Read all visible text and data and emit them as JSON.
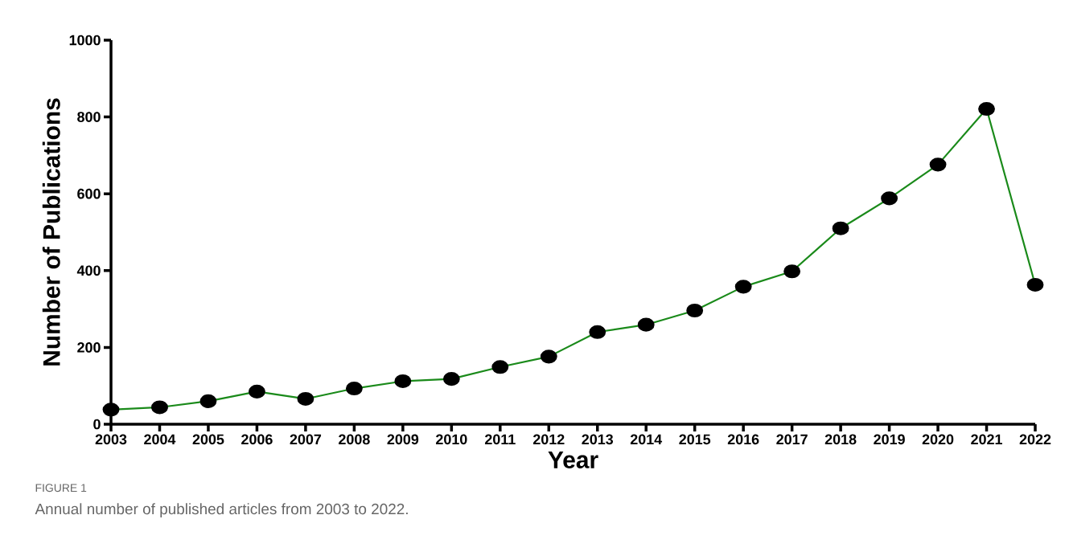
{
  "chart_data": {
    "type": "line",
    "xlabel": "Year",
    "ylabel": "Number of Publications",
    "categories": [
      "2003",
      "2004",
      "2005",
      "2006",
      "2007",
      "2008",
      "2009",
      "2010",
      "2011",
      "2012",
      "2013",
      "2014",
      "2015",
      "2016",
      "2017",
      "2018",
      "2019",
      "2020",
      "2021",
      "2022"
    ],
    "series": [
      {
        "color": "#1a8a1a",
        "values": [
          38,
          44,
          60,
          85,
          66,
          93,
          112,
          118,
          149,
          176,
          240,
          259,
          296,
          358,
          398,
          510,
          588,
          676,
          821,
          363
        ]
      }
    ],
    "ylim": [
      0,
      1000
    ],
    "yticks": [
      0,
      200,
      400,
      600,
      800,
      1000
    ],
    "grid": false,
    "marker": "circle",
    "line_style": "solid",
    "annotations": [
      "FIGURE 1",
      "Annual number of published articles from 2003 to 2022."
    ]
  }
}
